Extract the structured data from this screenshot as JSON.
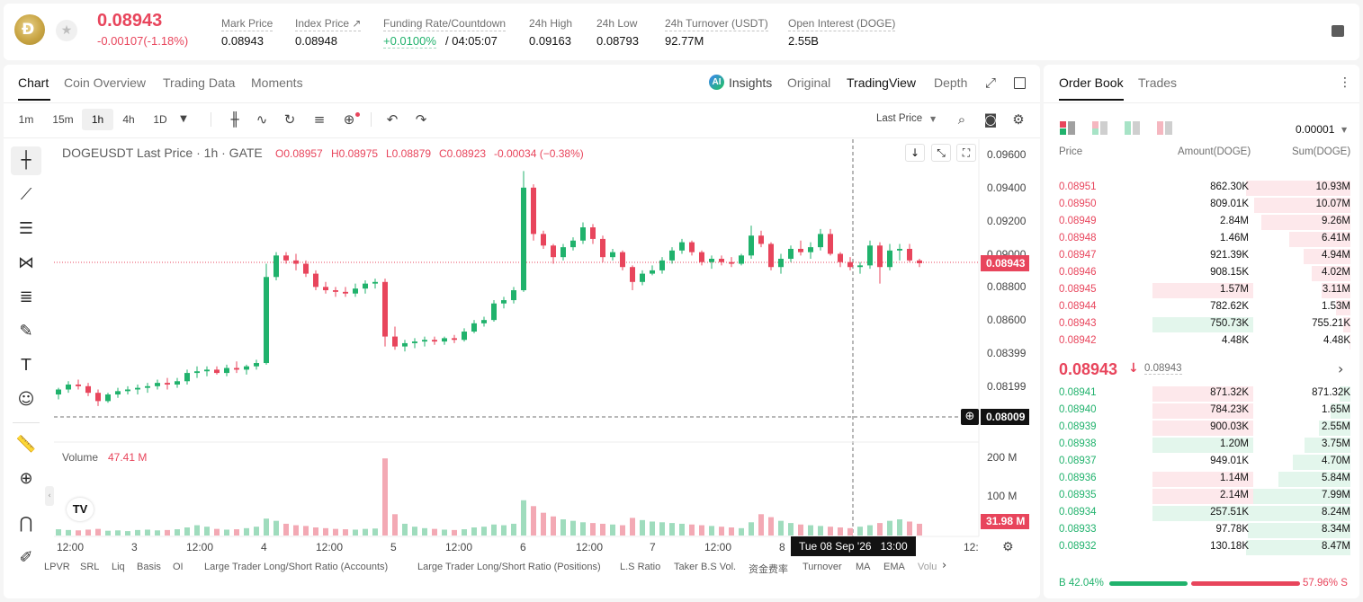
{
  "ticker": {
    "last_price": "0.08943",
    "change": "-0.00107(-1.18%)",
    "stats": [
      {
        "label": "Mark Price",
        "value": "0.08943"
      },
      {
        "label": "Index Price ↗",
        "value": "0.08948"
      },
      {
        "label": "Funding Rate/Countdown",
        "value_rate": "+0.0100%",
        "value_countdown": "/ 04:05:07"
      },
      {
        "label": "24h High",
        "value": "0.09163"
      },
      {
        "label": "24h Low",
        "value": "0.08793"
      },
      {
        "label": "24h Turnover (USDT)",
        "value": "92.77M"
      },
      {
        "label": "Open Interest (DOGE)",
        "value": "2.55B"
      }
    ]
  },
  "chart_tabs": [
    "Chart",
    "Coin Overview",
    "Trading Data",
    "Moments"
  ],
  "chart_views": {
    "insights": "Insights",
    "original": "Original",
    "tradingview": "TradingView",
    "depth": "Depth"
  },
  "timeframes": [
    "1m",
    "15m",
    "1h",
    "4h",
    "1D"
  ],
  "price_type": "Last Price",
  "legend": {
    "symbol": "DOGEUSDT Last Price · 1h · GATE",
    "o": "O0.08957",
    "h": "H0.08975",
    "l": "L0.08879",
    "c": "C0.08923",
    "chg": "-0.00034 (−0.38%)"
  },
  "volume_label": {
    "title": "Volume",
    "value": "47.41 M"
  },
  "price_axis": [
    "0.09600",
    "0.09400",
    "0.09200",
    "0.09000",
    "0.08800",
    "0.08600",
    "0.08399",
    "0.08199"
  ],
  "last_price_tag": "0.08943",
  "crosshair_price_tag": "0.08009",
  "volume_axis": [
    "200 M",
    "100 M"
  ],
  "volume_tag": "31.98 M",
  "time_axis": [
    "12:00",
    "3",
    "12:00",
    "4",
    "12:00",
    "5",
    "12:00",
    "6",
    "12:00",
    "7",
    "12:00",
    "8",
    "12:"
  ],
  "crosshair_time": {
    "date": "Tue 08 Sep '26",
    "time": "13:00"
  },
  "indicators": [
    "LPVR",
    "SRL",
    "Liq",
    "Basis",
    "OI",
    "Large Trader Long/Short Ratio (Accounts)",
    "Large Trader Long/Short Ratio (Positions)",
    "L.S Ratio",
    "Taker B.S Vol.",
    "资金费率",
    "Turnover",
    "MA",
    "EMA",
    "Volu"
  ],
  "colors": {
    "up": "#20b26c",
    "down": "#e8455c",
    "accent": "#121212"
  },
  "chart_data": {
    "type": "candlestick",
    "interval": "1h",
    "ylim": [
      0.0807,
      0.0968
    ],
    "candles": [
      [
        0.0815,
        0.0819,
        0.0812,
        0.0818
      ],
      [
        0.0818,
        0.0823,
        0.0816,
        0.0821
      ],
      [
        0.0821,
        0.0824,
        0.0818,
        0.082
      ],
      [
        0.082,
        0.0822,
        0.0814,
        0.0816
      ],
      [
        0.0816,
        0.0818,
        0.0808,
        0.0811
      ],
      [
        0.0811,
        0.0816,
        0.081,
        0.0815
      ],
      [
        0.0815,
        0.0819,
        0.0813,
        0.0817
      ],
      [
        0.0817,
        0.082,
        0.0815,
        0.0818
      ],
      [
        0.0818,
        0.0821,
        0.0815,
        0.0819
      ],
      [
        0.0819,
        0.0822,
        0.0816,
        0.082
      ],
      [
        0.082,
        0.0824,
        0.0818,
        0.0822
      ],
      [
        0.0822,
        0.0825,
        0.0818,
        0.0821
      ],
      [
        0.0821,
        0.0825,
        0.0819,
        0.0823
      ],
      [
        0.0823,
        0.083,
        0.0821,
        0.0828
      ],
      [
        0.0828,
        0.0832,
        0.0825,
        0.0829
      ],
      [
        0.0829,
        0.0832,
        0.0826,
        0.083
      ],
      [
        0.083,
        0.0832,
        0.0827,
        0.0828
      ],
      [
        0.0828,
        0.0833,
        0.0826,
        0.0831
      ],
      [
        0.0831,
        0.0835,
        0.0828,
        0.083
      ],
      [
        0.083,
        0.0833,
        0.0827,
        0.0832
      ],
      [
        0.0832,
        0.0836,
        0.083,
        0.0834
      ],
      [
        0.0834,
        0.0894,
        0.0833,
        0.0886
      ],
      [
        0.0886,
        0.0901,
        0.0884,
        0.0899
      ],
      [
        0.0899,
        0.0901,
        0.0894,
        0.0896
      ],
      [
        0.0896,
        0.09,
        0.089,
        0.0894
      ],
      [
        0.0894,
        0.0896,
        0.0886,
        0.0888
      ],
      [
        0.0888,
        0.089,
        0.0878,
        0.088
      ],
      [
        0.088,
        0.0883,
        0.0876,
        0.0878
      ],
      [
        0.0878,
        0.088,
        0.0874,
        0.0877
      ],
      [
        0.0877,
        0.088,
        0.0874,
        0.0876
      ],
      [
        0.0876,
        0.0882,
        0.0874,
        0.0879
      ],
      [
        0.0879,
        0.0884,
        0.0876,
        0.0882
      ],
      [
        0.0882,
        0.0885,
        0.0879,
        0.0883
      ],
      [
        0.0883,
        0.0885,
        0.0844,
        0.085
      ],
      [
        0.085,
        0.0856,
        0.0842,
        0.0844
      ],
      [
        0.0844,
        0.0848,
        0.0841,
        0.0846
      ],
      [
        0.0846,
        0.0849,
        0.0843,
        0.0847
      ],
      [
        0.0847,
        0.085,
        0.0844,
        0.0848
      ],
      [
        0.0848,
        0.085,
        0.0845,
        0.0847
      ],
      [
        0.0847,
        0.085,
        0.0845,
        0.0849
      ],
      [
        0.0849,
        0.0851,
        0.0846,
        0.0848
      ],
      [
        0.0848,
        0.0855,
        0.0847,
        0.0853
      ],
      [
        0.0853,
        0.086,
        0.0852,
        0.0858
      ],
      [
        0.0858,
        0.0862,
        0.0856,
        0.086
      ],
      [
        0.086,
        0.0872,
        0.0859,
        0.087
      ],
      [
        0.087,
        0.0874,
        0.0867,
        0.0872
      ],
      [
        0.0872,
        0.088,
        0.087,
        0.0878
      ],
      [
        0.0878,
        0.095,
        0.0877,
        0.094
      ],
      [
        0.094,
        0.0942,
        0.0908,
        0.0912
      ],
      [
        0.0912,
        0.0914,
        0.0903,
        0.0905
      ],
      [
        0.0905,
        0.0906,
        0.0894,
        0.0898
      ],
      [
        0.0898,
        0.0906,
        0.0896,
        0.0904
      ],
      [
        0.0904,
        0.091,
        0.0902,
        0.0908
      ],
      [
        0.0908,
        0.0919,
        0.0906,
        0.0916
      ],
      [
        0.0916,
        0.0918,
        0.0906,
        0.0909
      ],
      [
        0.0909,
        0.0911,
        0.0895,
        0.0898
      ],
      [
        0.0898,
        0.0903,
        0.0896,
        0.0901
      ],
      [
        0.0901,
        0.0902,
        0.089,
        0.0892
      ],
      [
        0.0892,
        0.0893,
        0.0878,
        0.0883
      ],
      [
        0.0883,
        0.089,
        0.0881,
        0.0888
      ],
      [
        0.0888,
        0.0893,
        0.0887,
        0.089
      ],
      [
        0.089,
        0.0898,
        0.0888,
        0.0896
      ],
      [
        0.0896,
        0.0904,
        0.0894,
        0.0902
      ],
      [
        0.0902,
        0.0909,
        0.09,
        0.0907
      ],
      [
        0.0907,
        0.0908,
        0.0899,
        0.0901
      ],
      [
        0.0901,
        0.0902,
        0.0893,
        0.0895
      ],
      [
        0.0895,
        0.0899,
        0.0891,
        0.0897
      ],
      [
        0.0897,
        0.0899,
        0.0893,
        0.0895
      ],
      [
        0.0895,
        0.0898,
        0.0892,
        0.0894
      ],
      [
        0.0894,
        0.09,
        0.0893,
        0.0899
      ],
      [
        0.0899,
        0.0917,
        0.0897,
        0.0911
      ],
      [
        0.0911,
        0.0914,
        0.0904,
        0.0906
      ],
      [
        0.0906,
        0.0907,
        0.089,
        0.0892
      ],
      [
        0.0892,
        0.09,
        0.0888,
        0.0897
      ],
      [
        0.0897,
        0.0905,
        0.0895,
        0.0903
      ],
      [
        0.0903,
        0.0908,
        0.0899,
        0.0901
      ],
      [
        0.0901,
        0.0907,
        0.0897,
        0.0904
      ],
      [
        0.0904,
        0.0915,
        0.0902,
        0.0912
      ],
      [
        0.0912,
        0.0915,
        0.0899,
        0.09
      ],
      [
        0.09,
        0.0901,
        0.0892,
        0.0895
      ],
      [
        0.0895,
        0.0898,
        0.089,
        0.0892
      ],
      [
        0.0892,
        0.0895,
        0.0888,
        0.0893
      ],
      [
        0.0893,
        0.0908,
        0.0891,
        0.0905
      ],
      [
        0.0905,
        0.0907,
        0.0882,
        0.0892
      ],
      [
        0.0892,
        0.0906,
        0.089,
        0.0902
      ],
      [
        0.0902,
        0.0906,
        0.0896,
        0.0903
      ],
      [
        0.0903,
        0.0906,
        0.0895,
        0.0896
      ],
      [
        0.0896,
        0.0897,
        0.0892,
        0.08943
      ]
    ],
    "volume_ylim": [
      0,
      230
    ],
    "volumes": [
      17,
      15,
      14,
      16,
      18,
      13,
      14,
      12,
      15,
      16,
      14,
      15,
      17,
      22,
      28,
      24,
      18,
      16,
      17,
      20,
      24,
      46,
      40,
      32,
      28,
      26,
      22,
      20,
      18,
      17,
      16,
      18,
      19,
      210,
      58,
      32,
      24,
      20,
      18,
      16,
      15,
      17,
      22,
      24,
      30,
      28,
      32,
      96,
      80,
      62,
      52,
      44,
      40,
      36,
      34,
      32,
      30,
      28,
      48,
      42,
      38,
      36,
      34,
      32,
      30,
      28,
      26,
      24,
      22,
      20,
      36,
      58,
      50,
      40,
      34,
      30,
      28,
      26,
      24,
      22,
      20,
      24,
      28,
      34,
      40,
      44,
      38,
      32
    ]
  },
  "order_book": {
    "tabs": [
      "Order Book",
      "Trades"
    ],
    "precision": "0.00001",
    "headers": [
      "Price",
      "Amount(DOGE)",
      "Sum(DOGE)"
    ],
    "asks": [
      {
        "price": "0.08951",
        "amount": "862.30K",
        "sum": "10.93M",
        "depth": 1.0,
        "amt_bar": 0
      },
      {
        "price": "0.08950",
        "amount": "809.01K",
        "sum": "10.07M",
        "depth": 0.92,
        "amt_bar": 0
      },
      {
        "price": "0.08949",
        "amount": "2.84M",
        "sum": "9.26M",
        "depth": 0.85,
        "amt_bar": 0
      },
      {
        "price": "0.08948",
        "amount": "1.46M",
        "sum": "6.41M",
        "depth": 0.59,
        "amt_bar": 0
      },
      {
        "price": "0.08947",
        "amount": "921.39K",
        "sum": "4.94M",
        "depth": 0.45,
        "amt_bar": 0
      },
      {
        "price": "0.08946",
        "amount": "908.15K",
        "sum": "4.02M",
        "depth": 0.37,
        "amt_bar": 0
      },
      {
        "price": "0.08945",
        "amount": "1.57M",
        "sum": "3.11M",
        "depth": 0.28,
        "amt_bar": 1
      },
      {
        "price": "0.08944",
        "amount": "782.62K",
        "sum": "1.53M",
        "depth": 0.14,
        "amt_bar": 0
      },
      {
        "price": "0.08943",
        "amount": "750.73K",
        "sum": "755.21K",
        "depth": 0.07,
        "amt_bar": 2
      },
      {
        "price": "0.08942",
        "amount": "4.48K",
        "sum": "4.48K",
        "depth": 0.01,
        "amt_bar": 0
      }
    ],
    "mid_price": "0.08943",
    "mid_mark": "0.08943",
    "bids": [
      {
        "price": "0.08941",
        "amount": "871.32K",
        "sum": "871.32K",
        "depth": 0.1,
        "amt_bar": 1
      },
      {
        "price": "0.08940",
        "amount": "784.23K",
        "sum": "1.65M",
        "depth": 0.19,
        "amt_bar": 1
      },
      {
        "price": "0.08939",
        "amount": "900.03K",
        "sum": "2.55M",
        "depth": 0.3,
        "amt_bar": 1
      },
      {
        "price": "0.08938",
        "amount": "1.20M",
        "sum": "3.75M",
        "depth": 0.44,
        "amt_bar": 2
      },
      {
        "price": "0.08937",
        "amount": "949.01K",
        "sum": "4.70M",
        "depth": 0.55,
        "amt_bar": 0
      },
      {
        "price": "0.08936",
        "amount": "1.14M",
        "sum": "5.84M",
        "depth": 0.69,
        "amt_bar": 1
      },
      {
        "price": "0.08935",
        "amount": "2.14M",
        "sum": "7.99M",
        "depth": 0.94,
        "amt_bar": 1
      },
      {
        "price": "0.08934",
        "amount": "257.51K",
        "sum": "8.24M",
        "depth": 0.97,
        "amt_bar": 2
      },
      {
        "price": "0.08933",
        "amount": "97.78K",
        "sum": "8.34M",
        "depth": 0.98,
        "amt_bar": 0
      },
      {
        "price": "0.08932",
        "amount": "130.18K",
        "sum": "8.47M",
        "depth": 1.0,
        "amt_bar": 0
      }
    ],
    "ratio": {
      "buy_label": "B",
      "buy": "42.04%",
      "sell": "57.96%",
      "sell_label": "S",
      "buy_fraction": 0.4204
    }
  }
}
